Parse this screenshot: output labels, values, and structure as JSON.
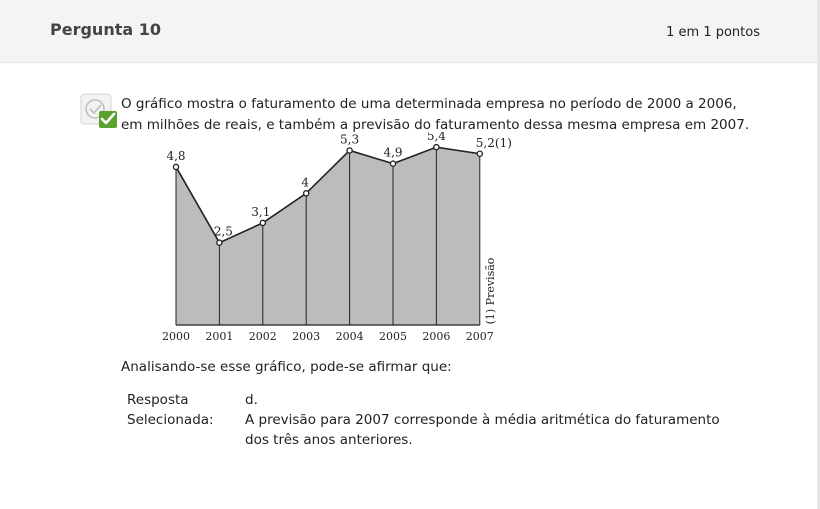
{
  "question": {
    "title": "Pergunta 10",
    "points": "1 em 1 pontos",
    "text": "O gráfico mostra o faturamento de uma determinada empresa no período de 2000 a 2006, em milhões de reais, e também a previsão do faturamento dessa mesma empresa em 2007.",
    "prompt": "Analisando-se esse gráfico, pode-se afirmar que:"
  },
  "answer": {
    "label_line1": "Resposta",
    "label_line2": "Selecionada:",
    "letter": "d.",
    "text": "A previsão para 2007 corresponde à média aritmética do faturamento dos três anos anteriores."
  },
  "colors": {
    "fill": "#bcbcbe",
    "check": "#5aa12f"
  },
  "chart_data": {
    "type": "area",
    "title": "",
    "xlabel": "",
    "ylabel": "",
    "x": [
      "2000",
      "2001",
      "2002",
      "2003",
      "2004",
      "2005",
      "2006",
      "2007"
    ],
    "values": [
      4.8,
      2.5,
      3.1,
      4,
      5.3,
      4.9,
      5.4,
      5.2
    ],
    "point_labels": [
      "4,8",
      "2,5",
      "3,1",
      "4",
      "5,3",
      "4,9",
      "5,4",
      "5,2(1)"
    ],
    "ylim": [
      0,
      5.8
    ],
    "footnote": "(1) Previsão"
  }
}
